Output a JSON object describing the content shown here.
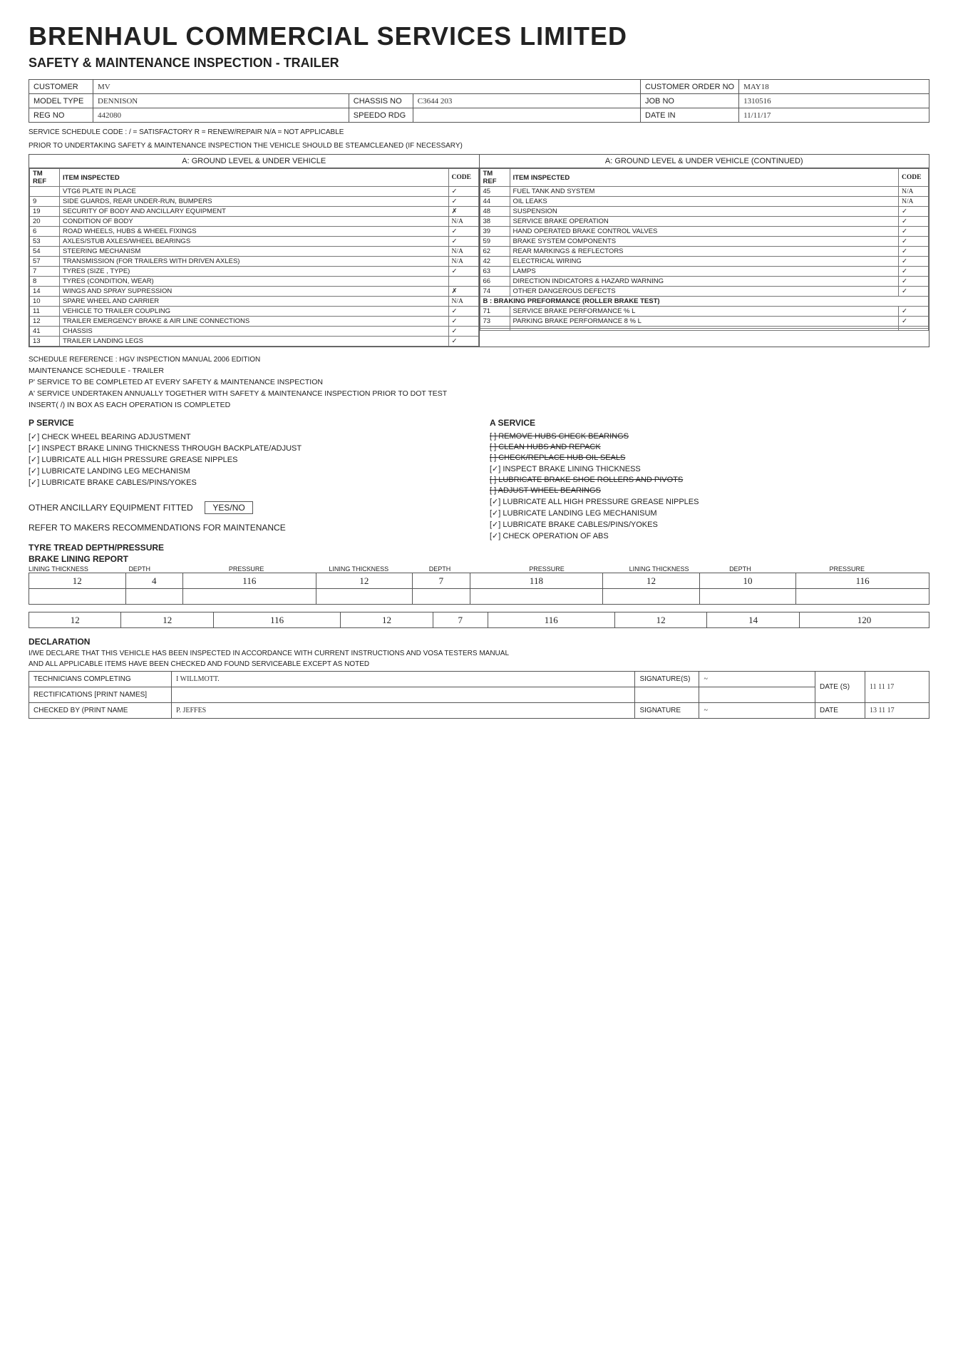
{
  "company": "BRENHAUL COMMERCIAL SERVICES LIMITED",
  "form_title": "SAFETY & MAINTENANCE INSPECTION - TRAILER",
  "header": {
    "customer_label": "CUSTOMER",
    "customer_val": "MV",
    "order_label": "CUSTOMER ORDER NO",
    "order_val": "MAY18",
    "model_label": "MODEL TYPE",
    "model_val": "DENNISON",
    "chassis_label": "CHASSIS NO",
    "chassis_val": "C3644 203",
    "job_label": "JOB NO",
    "job_val": "1310516",
    "reg_label": "REG NO",
    "reg_val": "442080",
    "speedo_label": "SPEEDO RDG",
    "speedo_val": "",
    "date_label": "DATE IN",
    "date_val": "11/11/17"
  },
  "service_code_note": "SERVICE SCHEDULE CODE :   / = SATISFACTORY   R = RENEW/REPAIR   N/A = NOT APPLICABLE",
  "steam_note": "PRIOR TO UNDERTAKING SAFETY & MAINTENANCE INSPECTION THE VEHICLE SHOULD BE STEAMCLEANED (IF NECESSARY)",
  "left_head": "A: GROUND LEVEL & UNDER VEHICLE",
  "right_head": "A: GROUND LEVEL & UNDER VEHICLE (CONTINUED)",
  "col_tm": "TM REF",
  "col_item": "ITEM INSPECTED",
  "col_code": "CODE",
  "brake_band": "B : BRAKING PREFORMANCE (ROLLER BRAKE TEST)",
  "left_rows": [
    {
      "ref": "",
      "item": "VTG6 PLATE IN PLACE",
      "code": "✓"
    },
    {
      "ref": "9",
      "item": "SIDE GUARDS, REAR UNDER-RUN, BUMPERS",
      "code": "✓"
    },
    {
      "ref": "19",
      "item": "SECURITY OF BODY AND ANCILLARY EQUIPMENT",
      "code": "✗"
    },
    {
      "ref": "20",
      "item": "CONDITION OF BODY",
      "code": "N/A"
    },
    {
      "ref": "6",
      "item": "ROAD WHEELS, HUBS & WHEEL FIXINGS",
      "code": "✓"
    },
    {
      "ref": "53",
      "item": "AXLES/STUB AXLES/WHEEL BEARINGS",
      "code": "✓"
    },
    {
      "ref": "54",
      "item": "STEERING MECHANISM",
      "code": "N/A"
    },
    {
      "ref": "57",
      "item": "TRANSMISSION (FOR TRAILERS WITH DRIVEN AXLES)",
      "code": "N/A"
    },
    {
      "ref": "7",
      "item": "TYRES (SIZE , TYPE)",
      "code": "✓"
    },
    {
      "ref": "8",
      "item": "TYRES (CONDITION, WEAR)",
      "code": ""
    },
    {
      "ref": "14",
      "item": "WINGS AND SPRAY SUPRESSION",
      "code": "✗"
    },
    {
      "ref": "10",
      "item": "SPARE WHEEL AND CARRIER",
      "code": "N/A"
    },
    {
      "ref": "11",
      "item": "VEHICLE TO TRAILER COUPLING",
      "code": "✓"
    },
    {
      "ref": "12",
      "item": "TRAILER EMERGENCY BRAKE & AIR LINE CONNECTIONS",
      "code": "✓"
    },
    {
      "ref": "41",
      "item": "CHASSIS",
      "code": "✓"
    },
    {
      "ref": "13",
      "item": "TRAILER LANDING LEGS",
      "code": "✓"
    }
  ],
  "right_rows_a": [
    {
      "ref": "45",
      "item": "FUEL TANK AND SYSTEM",
      "code": "N/A"
    },
    {
      "ref": "44",
      "item": "OIL LEAKS",
      "code": "N/A"
    },
    {
      "ref": "48",
      "item": "SUSPENSION",
      "code": "✓"
    },
    {
      "ref": "38",
      "item": "SERVICE BRAKE OPERATION",
      "code": "✓"
    },
    {
      "ref": "39",
      "item": "HAND OPERATED BRAKE CONTROL VALVES",
      "code": "✓"
    },
    {
      "ref": "59",
      "item": "BRAKE SYSTEM COMPONENTS",
      "code": "✓"
    },
    {
      "ref": "62",
      "item": "REAR MARKINGS & REFLECTORS",
      "code": "✓"
    },
    {
      "ref": "42",
      "item": "ELECTRICAL WIRING",
      "code": "✓"
    },
    {
      "ref": "63",
      "item": "LAMPS",
      "code": "✓"
    },
    {
      "ref": "66",
      "item": "DIRECTION INDICATORS & HAZARD WARNING",
      "code": "✓"
    },
    {
      "ref": "74",
      "item": "OTHER DANGEROUS DEFECTS",
      "code": "✓"
    }
  ],
  "right_rows_b": [
    {
      "ref": "71",
      "item": "SERVICE BRAKE PERFORMANCE            % L",
      "code": "✓"
    },
    {
      "ref": "73",
      "item": "PARKING BRAKE PERFORMANCE       8   % L",
      "code": "✓"
    },
    {
      "ref": "",
      "item": "",
      "code": ""
    },
    {
      "ref": "",
      "item": "",
      "code": ""
    }
  ],
  "sched_ref": "SCHEDULE REFERENCE : HGV INSPECTION MANUAL 2006 EDITION",
  "maint_title": "MAINTENANCE SCHEDULE - TRAILER",
  "maint_p": "P' SERVICE TO BE COMPLETED AT EVERY SAFETY & MAINTENANCE INSPECTION",
  "maint_a": "A' SERVICE UNDERTAKEN ANNUALLY TOGETHER WITH SAFETY & MAINTENANCE INSPECTION PRIOR TO DOT TEST",
  "maint_insert": "INSERT( /) IN BOX AS EACH OPERATION IS COMPLETED",
  "p_head": "P SERVICE",
  "a_head": "A SERVICE",
  "p_items": [
    {
      "t": "CHECK WHEEL BEARING ADJUSTMENT",
      "d": true
    },
    {
      "t": "INSPECT BRAKE LINING THICKNESS THROUGH BACKPLATE/ADJUST",
      "d": true
    },
    {
      "t": "LUBRICATE ALL HIGH PRESSURE GREASE NIPPLES",
      "d": true
    },
    {
      "t": "LUBRICATE LANDING LEG MECHANISM",
      "d": true
    },
    {
      "t": "LUBRICATE BRAKE CABLES/PINS/YOKES",
      "d": true
    }
  ],
  "a_items": [
    {
      "t": "REMOVE HUBS CHECK BEARINGS",
      "d": false,
      "s": true
    },
    {
      "t": "CLEAN HUBS AND REPACK",
      "d": false,
      "s": true
    },
    {
      "t": "CHECK/REPLACE HUB OIL SEALS",
      "d": false,
      "s": true
    },
    {
      "t": "INSPECT BRAKE LINING THICKNESS",
      "d": true
    },
    {
      "t": "LUBRICATE BRAKE SHOE ROLLERS AND PIVOTS",
      "d": false,
      "s": true
    },
    {
      "t": "ADJUST WHEEL BEARINGS",
      "d": false,
      "s": true
    },
    {
      "t": "LUBRICATE ALL HIGH PRESSURE GREASE NIPPLES",
      "d": true
    },
    {
      "t": "LUBRICATE LANDING LEG MECHANISUM",
      "d": true
    },
    {
      "t": "LUBRICATE BRAKE CABLES/PINS/YOKES",
      "d": true
    },
    {
      "t": "CHECK OPERATION OF ABS",
      "d": true
    }
  ],
  "ancillary_label": "OTHER ANCILLARY EQUIPMENT FITTED",
  "yesno": "YES/NO",
  "refer_label": "REFER TO MAKERS RECOMMENDATIONS FOR MAINTENANCE",
  "tyre_head": "TYRE TREAD DEPTH/PRESSURE",
  "brake_lining_head": "BRAKE LINING REPORT",
  "lining_cols": [
    "LINING THICKNESS",
    "DEPTH",
    "PRESSURE",
    "LINING THICKNESS",
    "DEPTH",
    "PRESSURE",
    "LINING THICKNESS",
    "DEPTH",
    "PRESSURE"
  ],
  "lining_row1": [
    "12",
    "4",
    "116",
    "12",
    "7",
    "118",
    "12",
    "10",
    "116"
  ],
  "lining_row1b": [
    "",
    "",
    "",
    "",
    "",
    "",
    "",
    "",
    ""
  ],
  "lining_row2": [
    "12",
    "12",
    "116",
    "12",
    "7",
    "116",
    "12",
    "14",
    "120"
  ],
  "decl_head": "DECLARATION",
  "decl1": "I/WE DECLARE THAT THIS VEHICLE HAS BEEN INSPECTED IN ACCORDANCE WITH CURRENT INSTRUCTIONS AND VOSA TESTERS MANUAL",
  "decl2": "AND ALL APPLICABLE ITEMS HAVE BEEN CHECKED AND FOUND SERVICEABLE EXCEPT AS NOTED",
  "sig": {
    "tech_label": "TECHNICIANS COMPLETING",
    "tech_val": "I WILLMOTT.",
    "rect_label": "RECTIFICATIONS [PRINT NAMES]",
    "rect_val": "",
    "chk_label": "CHECKED BY (PRINT NAME",
    "chk_val": "P. JEFFES",
    "siglabel": "SIGNATURE(S)",
    "siglabel2": "SIGNATURE",
    "date_label": "DATE (S)",
    "date1": "11 11 17",
    "date2": "13 11 17"
  }
}
